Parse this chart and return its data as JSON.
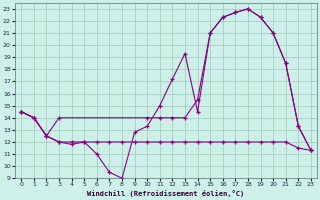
{
  "xlabel": "Windchill (Refroidissement éolien,°C)",
  "background_color": "#cdf0e8",
  "grid_color": "#a0c8b8",
  "line_color": "#880088",
  "xlim": [
    -0.5,
    23.5
  ],
  "ylim": [
    9,
    23.5
  ],
  "xticks": [
    0,
    1,
    2,
    3,
    4,
    5,
    6,
    7,
    8,
    9,
    10,
    11,
    12,
    13,
    14,
    15,
    16,
    17,
    18,
    19,
    20,
    21,
    22,
    23
  ],
  "yticks": [
    9,
    10,
    11,
    12,
    13,
    14,
    15,
    16,
    17,
    18,
    19,
    20,
    21,
    22,
    23
  ],
  "line1_x": [
    0,
    1,
    2,
    3,
    4,
    5,
    6,
    7,
    8,
    9,
    10,
    11,
    12,
    13,
    14,
    15,
    16,
    17,
    18,
    19,
    20,
    21,
    22,
    23
  ],
  "line1_y": [
    14.5,
    14.0,
    12.5,
    12.0,
    11.8,
    12.0,
    11.0,
    9.5,
    9.0,
    12.8,
    13.3,
    15.0,
    17.2,
    19.3,
    14.5,
    21.0,
    22.3,
    22.7,
    23.0,
    22.3,
    21.0,
    18.5,
    13.3,
    11.3
  ],
  "line2_x": [
    0,
    1,
    2,
    3,
    10,
    11,
    12,
    13,
    14,
    15,
    16,
    17,
    18,
    19,
    20,
    21,
    22,
    23
  ],
  "line2_y": [
    14.5,
    14.0,
    12.5,
    14.0,
    14.0,
    14.0,
    14.0,
    14.0,
    15.5,
    21.0,
    22.3,
    22.7,
    23.0,
    22.3,
    21.0,
    18.5,
    13.3,
    11.3
  ],
  "line3_x": [
    0,
    1,
    2,
    3,
    4,
    5,
    6,
    7,
    8,
    9,
    10,
    11,
    12,
    13,
    14,
    15,
    16,
    17,
    18,
    19,
    20,
    21,
    22,
    23
  ],
  "line3_y": [
    14.5,
    14.0,
    12.5,
    12.0,
    12.0,
    12.0,
    12.0,
    12.0,
    12.0,
    12.0,
    12.0,
    12.0,
    12.0,
    12.0,
    12.0,
    12.0,
    12.0,
    12.0,
    12.0,
    12.0,
    12.0,
    12.0,
    11.5,
    11.3
  ]
}
